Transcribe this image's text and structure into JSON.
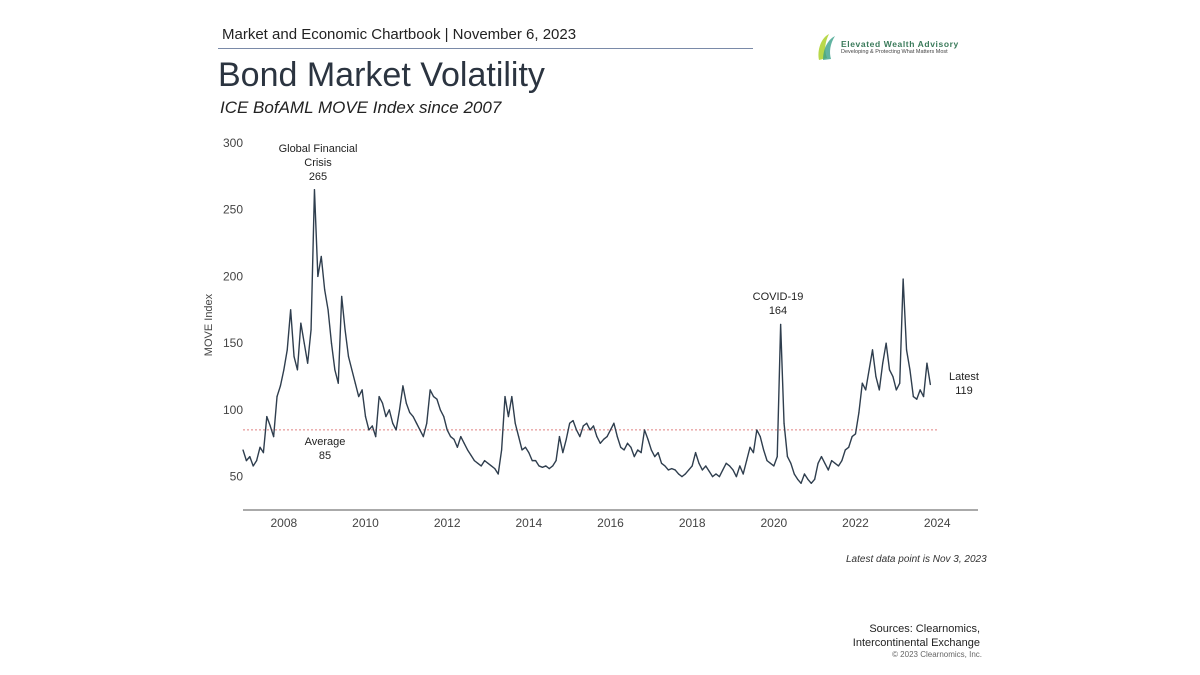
{
  "header": {
    "text": "Market and Economic Chartbook | November 6, 2023"
  },
  "title": "Bond Market Volatility",
  "subtitle": "ICE BofAML MOVE Index since 2007",
  "logo": {
    "name": "Elevated Wealth Advisory",
    "tagline": "Developing & Protecting What Matters Most",
    "color": "#3a7a5a"
  },
  "footnote": "Latest data point is Nov 3, 2023",
  "sources": [
    "Sources: Clearnomics,",
    "Intercontinental Exchange"
  ],
  "copyright": "© 2023 Clearnomics, Inc.",
  "chart_data": {
    "type": "line",
    "title": "",
    "xlabel": "",
    "ylabel": "MOVE Index",
    "xlim": [
      2007,
      2025
    ],
    "ylim": [
      25,
      300
    ],
    "yticks": [
      50,
      100,
      150,
      200,
      250,
      300
    ],
    "xticks": [
      2008,
      2010,
      2012,
      2014,
      2016,
      2018,
      2020,
      2022,
      2024
    ],
    "grid": false,
    "line_color": "#2f3e4e",
    "average": {
      "value": 85,
      "label": "Average",
      "value_label": "85",
      "color": "#e08080"
    },
    "annotations": [
      {
        "lines": [
          "Global Financial",
          "Crisis",
          "265"
        ],
        "x": 2008.8,
        "y": 265
      },
      {
        "lines": [
          "COVID-19",
          "164"
        ],
        "x": 2020.2,
        "y": 164
      },
      {
        "lines": [
          "Latest",
          "119"
        ],
        "x": 2023.84,
        "y": 119
      }
    ],
    "series": [
      {
        "start": "2007-01",
        "frequency": "monthly",
        "values": [
          70,
          62,
          65,
          58,
          62,
          72,
          68,
          95,
          88,
          80,
          110,
          118,
          130,
          145,
          175,
          140,
          130,
          165,
          150,
          135,
          160,
          265,
          200,
          215,
          190,
          175,
          150,
          130,
          120,
          185,
          160,
          140,
          130,
          120,
          110,
          115,
          95,
          85,
          88,
          80,
          110,
          105,
          95,
          100,
          90,
          85,
          100,
          118,
          105,
          98,
          95,
          90,
          85,
          80,
          90,
          115,
          110,
          108,
          100,
          95,
          85,
          80,
          78,
          72,
          80,
          75,
          70,
          66,
          62,
          60,
          58,
          62,
          60,
          58,
          56,
          52,
          70,
          110,
          95,
          110,
          90,
          80,
          70,
          72,
          68,
          62,
          62,
          58,
          57,
          58,
          56,
          58,
          62,
          80,
          68,
          78,
          90,
          92,
          85,
          80,
          88,
          90,
          85,
          88,
          80,
          75,
          78,
          80,
          85,
          90,
          80,
          72,
          70,
          75,
          72,
          65,
          70,
          68,
          85,
          78,
          70,
          65,
          68,
          60,
          58,
          55,
          56,
          55,
          52,
          50,
          52,
          55,
          58,
          68,
          60,
          55,
          58,
          54,
          50,
          52,
          50,
          55,
          60,
          58,
          55,
          50,
          58,
          52,
          62,
          72,
          68,
          85,
          80,
          70,
          62,
          60,
          58,
          65,
          164,
          90,
          65,
          60,
          52,
          48,
          45,
          52,
          48,
          45,
          48,
          60,
          65,
          60,
          55,
          62,
          60,
          58,
          62,
          70,
          72,
          80,
          82,
          98,
          120,
          115,
          130,
          145,
          125,
          115,
          135,
          150,
          130,
          125,
          115,
          120,
          198,
          145,
          130,
          110,
          108,
          115,
          110,
          135,
          119
        ]
      }
    ]
  }
}
